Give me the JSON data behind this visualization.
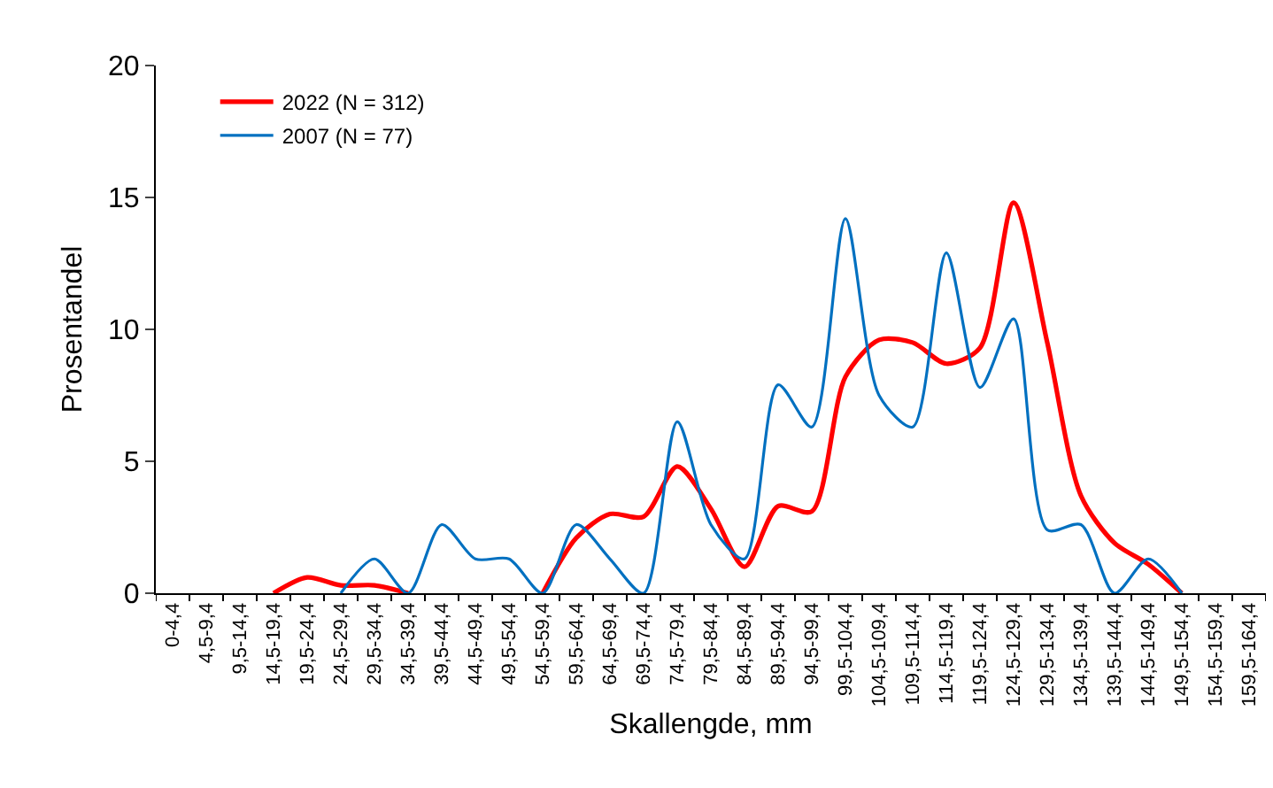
{
  "chart_data": {
    "type": "line",
    "xlabel": "Skallengde, mm",
    "ylabel": "Prosentandel",
    "categories": [
      "0-4,4",
      "4,5-9,4",
      "9,5-14,4",
      "14,5-19,4",
      "19,5-24,4",
      "24,5-29,4",
      "29,5-34,4",
      "34,5-39,4",
      "39,5-44,4",
      "44,5-49,4",
      "49,5-54,4",
      "54,5-59,4",
      "59,5-64,4",
      "64,5-69,4",
      "69,5-74,4",
      "74,5-79,4",
      "79,5-84,4",
      "84,5-89,4",
      "89,5-94,4",
      "94,5-99,4",
      "99,5-104,4",
      "104,5-109,4",
      "109,5-114,4",
      "114,5-119,4",
      "119,5-124,4",
      "124,5-129,4",
      "129,5-134,4",
      "134,5-139,4",
      "139,5-144,4",
      "144,5-149,4",
      "149,5-154,4",
      "154,5-159,4",
      "159,5-164,4"
    ],
    "series": [
      {
        "name": "2022 (N = 312)",
        "color": "#ff0000",
        "values": [
          null,
          null,
          null,
          0,
          0.6,
          0.3,
          0.3,
          0,
          null,
          null,
          null,
          0,
          2.1,
          3.0,
          2.9,
          4.8,
          3.2,
          1.0,
          3.3,
          3.1,
          8.2,
          9.6,
          9.5,
          8.7,
          9.3,
          14.8,
          9.5,
          3.7,
          1.9,
          1.1,
          0,
          null,
          null
        ]
      },
      {
        "name": "2007 (N = 77)",
        "color": "#0070c0",
        "values": [
          null,
          null,
          null,
          null,
          null,
          0,
          1.3,
          0,
          2.6,
          1.3,
          1.3,
          0,
          2.6,
          1.3,
          0,
          6.5,
          2.6,
          1.3,
          7.9,
          6.3,
          14.2,
          7.5,
          6.3,
          12.9,
          7.8,
          10.4,
          2.4,
          2.6,
          0,
          1.3,
          0,
          null,
          null
        ]
      }
    ],
    "ylim": [
      0,
      20
    ],
    "yticks": [
      0,
      5,
      10,
      15,
      20
    ],
    "grid": false,
    "legend": "top left",
    "marker": "none",
    "line_style": "solid"
  }
}
